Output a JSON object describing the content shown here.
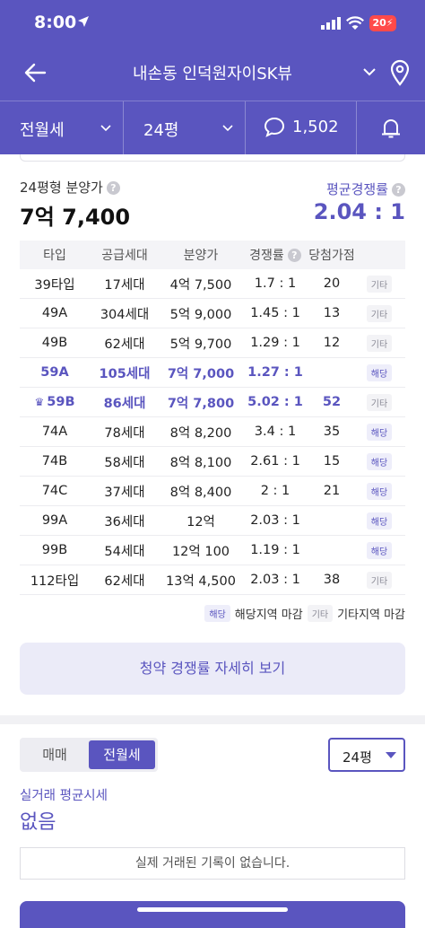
{
  "status": {
    "time": "8:00",
    "battery": "20"
  },
  "header": {
    "title": "내손동 인덕원자이SK뷰"
  },
  "filters": {
    "deal_type": "전월세",
    "size": "24평",
    "comment_count": "1,502"
  },
  "summary": {
    "price_label": "24평형 분양가",
    "price_value": "7억 7,400",
    "rate_label": "평균경쟁률",
    "rate_value": "2.04 : 1"
  },
  "table": {
    "headers": [
      "타입",
      "공급세대",
      "분양가",
      "경쟁률",
      "당첨가점"
    ],
    "rows": [
      {
        "type": "39타입",
        "units": "17세대",
        "price": "4억 7,500",
        "rate": "1.7 : 1",
        "score": "20",
        "tag": "기타"
      },
      {
        "type": "49A",
        "units": "304세대",
        "price": "5억 9,000",
        "rate": "1.45 : 1",
        "score": "13",
        "tag": "기타"
      },
      {
        "type": "49B",
        "units": "62세대",
        "price": "5억 9,700",
        "rate": "1.29 : 1",
        "score": "12",
        "tag": "기타"
      },
      {
        "type": "59A",
        "units": "105세대",
        "price": "7억 7,000",
        "rate": "1.27 : 1",
        "score": "",
        "tag": "해당"
      },
      {
        "type": "59B",
        "units": "86세대",
        "price": "7억 7,800",
        "rate": "5.02 : 1",
        "score": "52",
        "tag": "기타"
      },
      {
        "type": "74A",
        "units": "78세대",
        "price": "8억 8,200",
        "rate": "3.4 : 1",
        "score": "35",
        "tag": "해당"
      },
      {
        "type": "74B",
        "units": "58세대",
        "price": "8억 8,100",
        "rate": "2.61 : 1",
        "score": "15",
        "tag": "해당"
      },
      {
        "type": "74C",
        "units": "37세대",
        "price": "8억 8,400",
        "rate": "2 : 1",
        "score": "21",
        "tag": "해당"
      },
      {
        "type": "99A",
        "units": "36세대",
        "price": "12억",
        "rate": "2.03 : 1",
        "score": "",
        "tag": "해당"
      },
      {
        "type": "99B",
        "units": "54세대",
        "price": "12억 100",
        "rate": "1.19 : 1",
        "score": "",
        "tag": "해당"
      },
      {
        "type": "112타입",
        "units": "62세대",
        "price": "13억 4,500",
        "rate": "2.03 : 1",
        "score": "38",
        "tag": "기타"
      }
    ]
  },
  "legend": {
    "local_tag": "해당",
    "local_text": "해당지역 마감",
    "other_tag": "기타",
    "other_text": "기타지역 마감"
  },
  "detail_button": "청약 경쟁률 자세히 보기",
  "trade": {
    "tabs": [
      "매매",
      "전월세"
    ],
    "selected_tab": "전월세",
    "size_select": "24평",
    "label": "실거래 평균시세",
    "value": "없음",
    "empty_message": "실제 거래된 기록이 없습니다."
  },
  "colors": {
    "brand": "#5a55bf",
    "highlight_row_text": "#5a55bf"
  }
}
